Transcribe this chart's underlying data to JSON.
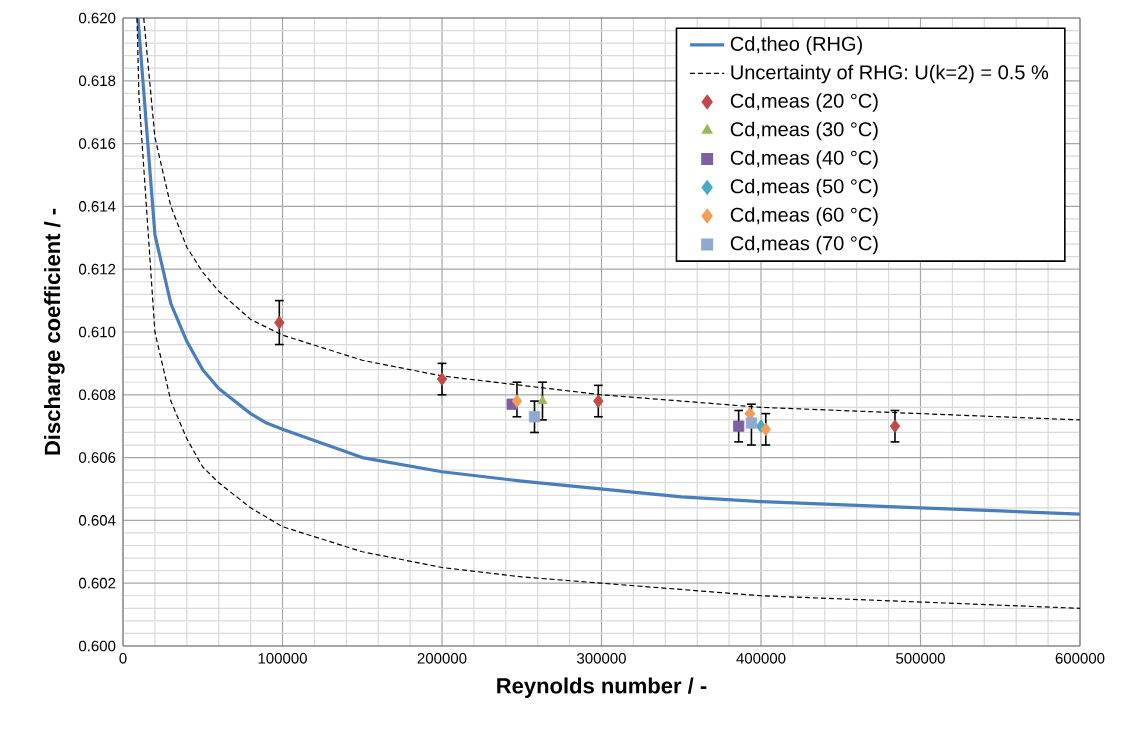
{
  "chart_data": {
    "type": "line",
    "xlabel": "Reynolds number / -",
    "ylabel": "Discharge coefficient / -",
    "xlim": [
      0,
      600000
    ],
    "ylim": [
      0.6,
      0.62
    ],
    "xticks": [
      0,
      100000,
      200000,
      300000,
      400000,
      500000,
      600000
    ],
    "yticks": [
      {
        "value": 0.6,
        "label": "0.600"
      },
      {
        "value": 0.602,
        "label": "0.602"
      },
      {
        "value": 0.604,
        "label": "0.604"
      },
      {
        "value": 0.606,
        "label": "0.606"
      },
      {
        "value": 0.608,
        "label": "0.608"
      },
      {
        "value": 0.61,
        "label": "0.610"
      },
      {
        "value": 0.612,
        "label": "0.612"
      },
      {
        "value": 0.614,
        "label": "0.614"
      },
      {
        "value": 0.616,
        "label": "0.616"
      },
      {
        "value": 0.618,
        "label": "0.618"
      },
      {
        "value": 0.62,
        "label": "0.620"
      }
    ],
    "grid": true,
    "legend": "top right",
    "series": [
      {
        "name": "Cd,theo (RHG)",
        "color": "#4a7ebb",
        "x": [
          9400,
          20000,
          30000,
          40000,
          50000,
          60000,
          70000,
          80000,
          90000,
          100000,
          150000,
          200000,
          250000,
          300000,
          350000,
          400000,
          450000,
          500000,
          550000,
          600000
        ],
        "values": [
          0.62,
          0.6131,
          0.6109,
          0.6097,
          0.6088,
          0.6082,
          0.6078,
          0.6074,
          0.6071,
          0.6069,
          0.606,
          0.60555,
          0.60525,
          0.605,
          0.60475,
          0.6046,
          0.6045,
          0.6044,
          0.6043,
          0.6042
        ]
      },
      {
        "name": "Uncertainty of RHG: U(k=2) = 0.5 %",
        "line_style": "dashed",
        "color": "#000000",
        "x": [
          13000,
          20000,
          30000,
          40000,
          50000,
          60000,
          80000,
          100000,
          150000,
          200000,
          250000,
          300000,
          350000,
          400000,
          500000,
          600000
        ],
        "values": [
          0.62,
          0.6162,
          0.614,
          0.6127,
          0.6119,
          0.6113,
          0.6104,
          0.6099,
          0.6091,
          0.6086,
          0.6083,
          0.608,
          0.6078,
          0.6076,
          0.6074,
          0.6072
        ]
      },
      {
        "line_style": "dashed",
        "color": "#000000",
        "x": [
          8800,
          10000,
          20000,
          30000,
          40000,
          50000,
          60000,
          80000,
          100000,
          150000,
          200000,
          250000,
          300000,
          350000,
          400000,
          500000,
          600000
        ],
        "values": [
          0.62,
          0.6175,
          0.61,
          0.6078,
          0.6066,
          0.6057,
          0.6052,
          0.6044,
          0.6038,
          0.603,
          0.6025,
          0.6022,
          0.602,
          0.6018,
          0.6016,
          0.6014,
          0.6012
        ]
      },
      {
        "name": "Cd,meas (20 °C)",
        "type": "scatter",
        "marker": "diamond",
        "color": "#be4b48",
        "x": [
          98000,
          200000,
          298000,
          484000
        ],
        "values": [
          0.6103,
          0.6085,
          0.6078,
          0.607
        ],
        "errors": [
          [
            0.6096,
            0.611
          ],
          0.0005,
          0.0005,
          0.0005
        ]
      },
      {
        "name": "Cd,meas (30 °C)",
        "type": "scatter",
        "marker": "triangle",
        "color": "#98b954",
        "x": [
          263000
        ],
        "values": [
          0.6078
        ],
        "errors": [
          [
            0.6072,
            0.6084
          ]
        ]
      },
      {
        "name": "Cd,meas (40 °C)",
        "type": "scatter",
        "marker": "square",
        "color": "#7d60a0",
        "x": [
          244000,
          386000
        ],
        "values": [
          0.6077,
          0.607
        ],
        "errors": [
          null,
          0.0005
        ]
      },
      {
        "name": "Cd,meas (50 °C)",
        "type": "scatter",
        "marker": "diamond",
        "color": "#46aac5",
        "x": [
          400000
        ],
        "values": [
          0.607
        ]
      },
      {
        "name": "Cd,meas (60 °C)",
        "type": "scatter",
        "marker": "diamond",
        "color": "#f59d56",
        "x": [
          247000,
          393000,
          403000
        ],
        "values": [
          0.6078,
          0.6074,
          0.6069
        ],
        "errors": [
          [
            0.6073,
            0.6084
          ],
          null,
          0.0005
        ]
      },
      {
        "name": "Cd,meas (70 °C)",
        "type": "scatter",
        "marker": "square",
        "color": "#92a9cf",
        "x": [
          258000,
          394000
        ],
        "values": [
          0.6073,
          0.6071
        ],
        "errors": [
          0.0005,
          [
            0.6064,
            0.6077
          ]
        ]
      }
    ]
  }
}
